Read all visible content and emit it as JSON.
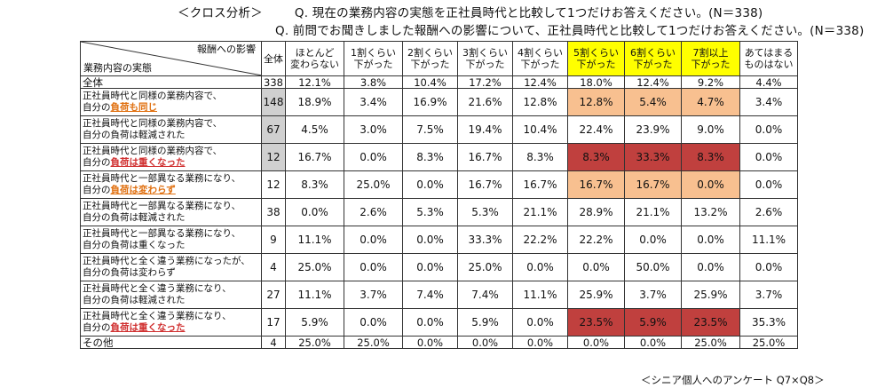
{
  "header": {
    "label": "＜クロス分析＞",
    "question1": "Q. 現在の業務内容の実態を正社員時代と比較して1つだけお答えください。(N＝338)",
    "question2": "Q. 前問でお聞きしました報酬への影響について、正社員時代と比較して1つだけお答えください。(N＝338)"
  },
  "table": {
    "corner_top": "報酬への影響",
    "corner_bottom": "業務内容の実態",
    "columns": [
      "全体",
      "ほとんど\n変わらない",
      "1割くらい\n下がった",
      "2割くらい\n下がった",
      "3割くらい\n下がった",
      "4割くらい\n下がった",
      "5割くらい\n下がった",
      "6割くらい\n下がった",
      "7割以上\n下がった",
      "あてはまる\nものはない"
    ],
    "rows": [
      {
        "l1": "全体",
        "l2": "",
        "emph": "",
        "total": "338",
        "values": [
          "12.1%",
          "3.8%",
          "10.4%",
          "17.2%",
          "12.4%",
          "18.0%",
          "12.4%",
          "9.2%",
          "4.4%"
        ]
      },
      {
        "l1": "正社員時代と同様の業務内容で、",
        "l2": "自分の",
        "emph": "負荷も同じ",
        "emph_color": "orange",
        "total": "148",
        "values": [
          "18.9%",
          "3.4%",
          "16.9%",
          "21.6%",
          "12.8%",
          "12.8%",
          "5.4%",
          "4.7%",
          "3.4%"
        ]
      },
      {
        "l1": "正社員時代と同様の業務内容で、",
        "l2": "自分の負荷は軽減された",
        "emph": "",
        "total": "67",
        "values": [
          "4.5%",
          "3.0%",
          "7.5%",
          "19.4%",
          "10.4%",
          "22.4%",
          "23.9%",
          "9.0%",
          "0.0%"
        ]
      },
      {
        "l1": "正社員時代と同様の業務内容で、",
        "l2": "自分の",
        "emph": "負荷は重くなった",
        "emph_color": "red",
        "total": "12",
        "values": [
          "16.7%",
          "0.0%",
          "8.3%",
          "16.7%",
          "8.3%",
          "8.3%",
          "33.3%",
          "8.3%",
          "0.0%"
        ]
      },
      {
        "l1": "正社員時代と一部異なる業務になり、",
        "l2": "自分の",
        "emph": "負荷は変わらず",
        "emph_color": "orange",
        "total": "12",
        "values": [
          "8.3%",
          "25.0%",
          "0.0%",
          "16.7%",
          "16.7%",
          "16.7%",
          "16.7%",
          "0.0%",
          "0.0%"
        ]
      },
      {
        "l1": "正社員時代と一部異なる業務になり、",
        "l2": "自分の負荷は軽減された",
        "emph": "",
        "total": "38",
        "values": [
          "0.0%",
          "2.6%",
          "5.3%",
          "5.3%",
          "21.1%",
          "28.9%",
          "21.1%",
          "13.2%",
          "2.6%"
        ]
      },
      {
        "l1": "正社員時代と一部異なる業務になり、",
        "l2": "自分の負荷は重くなった",
        "emph": "",
        "total": "9",
        "values": [
          "11.1%",
          "0.0%",
          "0.0%",
          "33.3%",
          "22.2%",
          "22.2%",
          "0.0%",
          "0.0%",
          "11.1%"
        ]
      },
      {
        "l1": "正社員時代と全く違う業務になったが、",
        "l2": "自分の負荷は変わらず",
        "emph": "",
        "total": "4",
        "values": [
          "25.0%",
          "0.0%",
          "0.0%",
          "25.0%",
          "0.0%",
          "0.0%",
          "50.0%",
          "0.0%",
          "0.0%"
        ]
      },
      {
        "l1": "正社員時代と全く違う業務になり、",
        "l2": "自分の負荷は軽減された",
        "emph": "",
        "total": "27",
        "values": [
          "11.1%",
          "3.7%",
          "7.4%",
          "7.4%",
          "11.1%",
          "25.9%",
          "3.7%",
          "25.9%",
          "3.7%"
        ]
      },
      {
        "l1": "正社員時代と全く違う業務になり、",
        "l2": "自分の",
        "emph": "負荷は重くなった",
        "emph_color": "red",
        "total": "17",
        "values": [
          "5.9%",
          "0.0%",
          "0.0%",
          "5.9%",
          "0.0%",
          "23.5%",
          "5.9%",
          "23.5%",
          "35.3%"
        ]
      },
      {
        "l1": "その他",
        "l2": "",
        "emph": "",
        "total": "4",
        "values": [
          "25.0%",
          "25.0%",
          "0.0%",
          "0.0%",
          "0.0%",
          "0.0%",
          "0.0%",
          "25.0%",
          "25.0%"
        ]
      }
    ],
    "colors": {
      "yellow": "#ffff00",
      "peach": "#f8c090",
      "red": "#c0403e",
      "gray": "#d0d0d0"
    }
  },
  "footnote": "＜シニア個人へのアンケート Q7×Q8＞"
}
